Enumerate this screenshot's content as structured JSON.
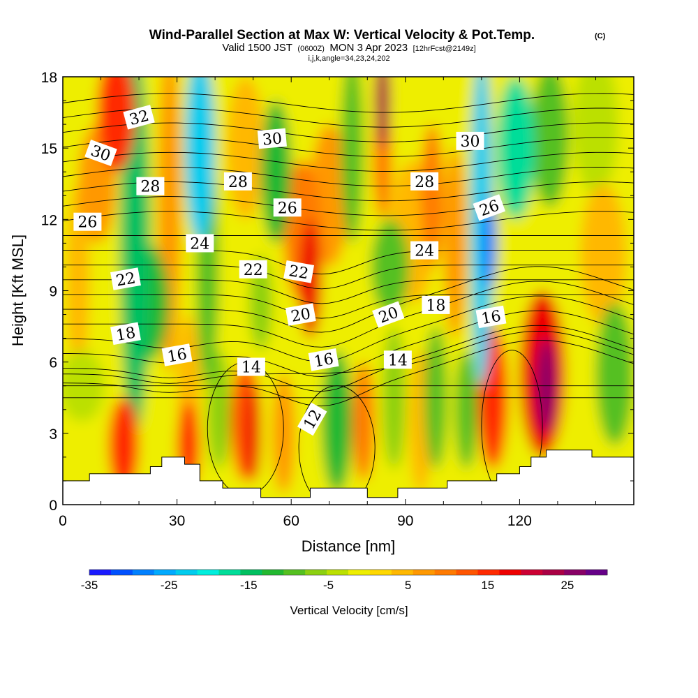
{
  "title": {
    "main": "Wind-Parallel Section at Max W: Vertical Velocity & Pot.Temp.",
    "copyright": "(C)",
    "valid_prefix": "Valid 1500 JST",
    "valid_utc": "(0600Z)",
    "valid_date": "MON 3 Apr 2023",
    "forecast": "[12hrFcst@2149z]",
    "indices": "i,j,k,angle=34,23,24,202"
  },
  "chart_data": {
    "type": "heatmap",
    "xlabel": "Distance [nm]",
    "ylabel": "Height [Kft MSL]",
    "xlim": [
      0,
      150
    ],
    "ylim": [
      0,
      18
    ],
    "x_ticks": [
      0,
      30,
      60,
      90,
      120
    ],
    "x_tick_labels": [
      "0",
      "30",
      "60",
      "90",
      "120"
    ],
    "y_ticks": [
      0,
      3,
      6,
      9,
      12,
      15,
      18
    ],
    "y_tick_labels": [
      "0",
      "3",
      "6",
      "9",
      "12",
      "15",
      "18"
    ],
    "colorbar": {
      "title": "Vertical Velocity [cm/s]",
      "min": -35,
      "max": 30,
      "tick_values": [
        -35,
        -25,
        -15,
        -5,
        5,
        15,
        25
      ],
      "tick_labels": [
        "-35",
        "-25",
        "-15",
        "-5",
        "5",
        "15",
        "25"
      ],
      "colors": [
        "#1a1aff",
        "#0050ff",
        "#0080ff",
        "#00aaff",
        "#00ccee",
        "#00eedd",
        "#00dd99",
        "#00c060",
        "#22b830",
        "#55c020",
        "#8cd010",
        "#bbe000",
        "#eeee00",
        "#ffd800",
        "#ffb800",
        "#ff9800",
        "#ff7a00",
        "#ff5500",
        "#ff2a00",
        "#ee0000",
        "#cc0033",
        "#aa0044",
        "#880066",
        "#660088"
      ]
    },
    "theta_contour_labels": [
      {
        "text": "32",
        "x": 20,
        "y": 16.3,
        "angle": -15
      },
      {
        "text": "30",
        "x": 10,
        "y": 14.8,
        "angle": 20
      },
      {
        "text": "30",
        "x": 55,
        "y": 15.4,
        "angle": -5
      },
      {
        "text": "30",
        "x": 107,
        "y": 15.3,
        "angle": 0
      },
      {
        "text": "28",
        "x": 23,
        "y": 13.4,
        "angle": 0
      },
      {
        "text": "28",
        "x": 46,
        "y": 13.6,
        "angle": 0
      },
      {
        "text": "28",
        "x": 95,
        "y": 13.6,
        "angle": 0
      },
      {
        "text": "26",
        "x": 6.5,
        "y": 11.9,
        "angle": 0
      },
      {
        "text": "26",
        "x": 59,
        "y": 12.5,
        "angle": 0
      },
      {
        "text": "26",
        "x": 112,
        "y": 12.5,
        "angle": -20
      },
      {
        "text": "24",
        "x": 36,
        "y": 11.0,
        "angle": 0
      },
      {
        "text": "24",
        "x": 95,
        "y": 10.7,
        "angle": 0
      },
      {
        "text": "22",
        "x": 16.5,
        "y": 9.5,
        "angle": -10
      },
      {
        "text": "22",
        "x": 50,
        "y": 9.9,
        "angle": 0
      },
      {
        "text": "22",
        "x": 62,
        "y": 9.8,
        "angle": 10
      },
      {
        "text": "20",
        "x": 62.5,
        "y": 8.0,
        "angle": -10
      },
      {
        "text": "20",
        "x": 85.5,
        "y": 8.0,
        "angle": -20
      },
      {
        "text": "18",
        "x": 16.5,
        "y": 7.2,
        "angle": -10
      },
      {
        "text": "18",
        "x": 98,
        "y": 8.4,
        "angle": 0
      },
      {
        "text": "16",
        "x": 30,
        "y": 6.3,
        "angle": -10
      },
      {
        "text": "16",
        "x": 68.5,
        "y": 6.1,
        "angle": -10
      },
      {
        "text": "16",
        "x": 112.5,
        "y": 7.9,
        "angle": -10
      },
      {
        "text": "14",
        "x": 49.5,
        "y": 5.8,
        "angle": 0
      },
      {
        "text": "14",
        "x": 88,
        "y": 6.1,
        "angle": 0
      },
      {
        "text": "12",
        "x": 65.5,
        "y": 3.6,
        "angle": -60
      }
    ],
    "w_cells": [
      {
        "x": 14,
        "y": 16.5,
        "rx": 5,
        "ry": 2.5,
        "w": 15
      },
      {
        "x": 9,
        "y": 13.5,
        "rx": 5,
        "ry": 2.5,
        "w": 8
      },
      {
        "x": 19,
        "y": 11,
        "rx": 4,
        "ry": 8,
        "w": -14
      },
      {
        "x": 22,
        "y": 8.5,
        "rx": 6,
        "ry": 2.5,
        "w": -12
      },
      {
        "x": 28,
        "y": 12.5,
        "rx": 3,
        "ry": 7,
        "w": 7
      },
      {
        "x": 36,
        "y": 15,
        "rx": 4,
        "ry": 4,
        "w": -22
      },
      {
        "x": 38,
        "y": 10,
        "rx": 3,
        "ry": 5,
        "w": -10
      },
      {
        "x": 33,
        "y": 5,
        "rx": 3,
        "ry": 3,
        "w": 5
      },
      {
        "x": 48,
        "y": 15,
        "rx": 5,
        "ry": 3,
        "w": 5
      },
      {
        "x": 56,
        "y": 14,
        "rx": 4,
        "ry": 3,
        "w": -12
      },
      {
        "x": 65,
        "y": 9.5,
        "rx": 3,
        "ry": 2.5,
        "w": 18
      },
      {
        "x": 63,
        "y": 11.5,
        "rx": 5,
        "ry": 3,
        "w": 10
      },
      {
        "x": 70,
        "y": 13,
        "rx": 5,
        "ry": 3,
        "w": 8
      },
      {
        "x": 76,
        "y": 15,
        "rx": 3,
        "ry": 4,
        "w": -10
      },
      {
        "x": 84,
        "y": 17,
        "rx": 2,
        "ry": 2,
        "w": 22
      },
      {
        "x": 84,
        "y": 14.5,
        "rx": 2.5,
        "ry": 2.5,
        "w": 10
      },
      {
        "x": 86,
        "y": 10,
        "rx": 5,
        "ry": 2,
        "w": -10
      },
      {
        "x": 92,
        "y": 11.5,
        "rx": 6,
        "ry": 3,
        "w": 3
      },
      {
        "x": 97,
        "y": 13,
        "rx": 3,
        "ry": 3,
        "w": 10
      },
      {
        "x": 103,
        "y": 11,
        "rx": 3,
        "ry": 4,
        "w": 8
      },
      {
        "x": 110,
        "y": 12,
        "rx": 3,
        "ry": 7,
        "w": -22
      },
      {
        "x": 112,
        "y": 11,
        "rx": 2,
        "ry": 2,
        "w": -28
      },
      {
        "x": 119,
        "y": 15,
        "rx": 5,
        "ry": 3,
        "w": -18
      },
      {
        "x": 128,
        "y": 15.5,
        "rx": 5,
        "ry": 3,
        "w": -8
      },
      {
        "x": 140,
        "y": 16,
        "rx": 6,
        "ry": 3,
        "w": -5
      },
      {
        "x": 142,
        "y": 10.5,
        "rx": 6,
        "ry": 3,
        "w": 5
      },
      {
        "x": 145,
        "y": 5.5,
        "rx": 5,
        "ry": 3,
        "w": -8
      },
      {
        "x": 113,
        "y": 4.5,
        "rx": 4,
        "ry": 3,
        "w": 15
      },
      {
        "x": 126,
        "y": 5.5,
        "rx": 6,
        "ry": 3.5,
        "w": 18
      },
      {
        "x": 127,
        "y": 5,
        "rx": 2.5,
        "ry": 2,
        "w": 25
      },
      {
        "x": 106,
        "y": 4,
        "rx": 3,
        "ry": 2.5,
        "w": -8
      },
      {
        "x": 48,
        "y": 3.5,
        "rx": 4,
        "ry": 2.5,
        "w": 12
      },
      {
        "x": 50,
        "y": 3,
        "rx": 2,
        "ry": 2,
        "w": 17
      },
      {
        "x": 16,
        "y": 2.5,
        "rx": 4,
        "ry": 2,
        "w": 15
      },
      {
        "x": 33,
        "y": 2.5,
        "rx": 3,
        "ry": 1.8,
        "w": 15
      },
      {
        "x": 41,
        "y": 4,
        "rx": 3,
        "ry": 2.5,
        "w": -6
      },
      {
        "x": 72,
        "y": 3.5,
        "rx": 4,
        "ry": 3,
        "w": -12
      },
      {
        "x": 58,
        "y": 3,
        "rx": 3,
        "ry": 2.5,
        "w": 8
      },
      {
        "x": 79,
        "y": 3.5,
        "rx": 3,
        "ry": 2.5,
        "w": 10
      },
      {
        "x": 87,
        "y": 4.5,
        "rx": 3,
        "ry": 3,
        "w": -6
      },
      {
        "x": 94,
        "y": 3.5,
        "rx": 3,
        "ry": 3,
        "w": 5
      },
      {
        "x": 98,
        "y": 4.5,
        "rx": 3,
        "ry": 3,
        "w": -8
      },
      {
        "x": 4,
        "y": 9.5,
        "rx": 3,
        "ry": 4,
        "w": 5
      },
      {
        "x": 5,
        "y": 5,
        "rx": 6,
        "ry": 1.5,
        "w": -5
      },
      {
        "x": 52,
        "y": 8.5,
        "rx": 3,
        "ry": 2,
        "w": -6
      }
    ],
    "terrain": [
      [
        0,
        1
      ],
      [
        7,
        1
      ],
      [
        7,
        1.3
      ],
      [
        23,
        1.3
      ],
      [
        23,
        1.6
      ],
      [
        26,
        1.6
      ],
      [
        26,
        2.0
      ],
      [
        32,
        2.0
      ],
      [
        32,
        1.7
      ],
      [
        36,
        1.7
      ],
      [
        36,
        1.0
      ],
      [
        42,
        1.0
      ],
      [
        42,
        0.7
      ],
      [
        52,
        0.7
      ],
      [
        52,
        0.3
      ],
      [
        65,
        0.3
      ],
      [
        65,
        0.7
      ],
      [
        80,
        0.7
      ],
      [
        80,
        0.3
      ],
      [
        88,
        0.3
      ],
      [
        88,
        0.7
      ],
      [
        101,
        0.7
      ],
      [
        101,
        1.0
      ],
      [
        114,
        1.0
      ],
      [
        114,
        1.3
      ],
      [
        120,
        1.3
      ],
      [
        120,
        1.6
      ],
      [
        123,
        1.6
      ],
      [
        123,
        2.0
      ],
      [
        127,
        2.0
      ],
      [
        127,
        2.3
      ],
      [
        139,
        2.3
      ],
      [
        139,
        2.0
      ],
      [
        150,
        2.0
      ],
      [
        150,
        0
      ],
      [
        0,
        0
      ]
    ],
    "theta_levels": [
      12,
      13,
      14,
      15,
      16,
      17,
      18,
      19,
      20,
      21,
      22,
      23,
      24,
      25,
      26,
      27,
      28,
      29,
      30,
      31,
      32,
      33,
      34
    ]
  }
}
